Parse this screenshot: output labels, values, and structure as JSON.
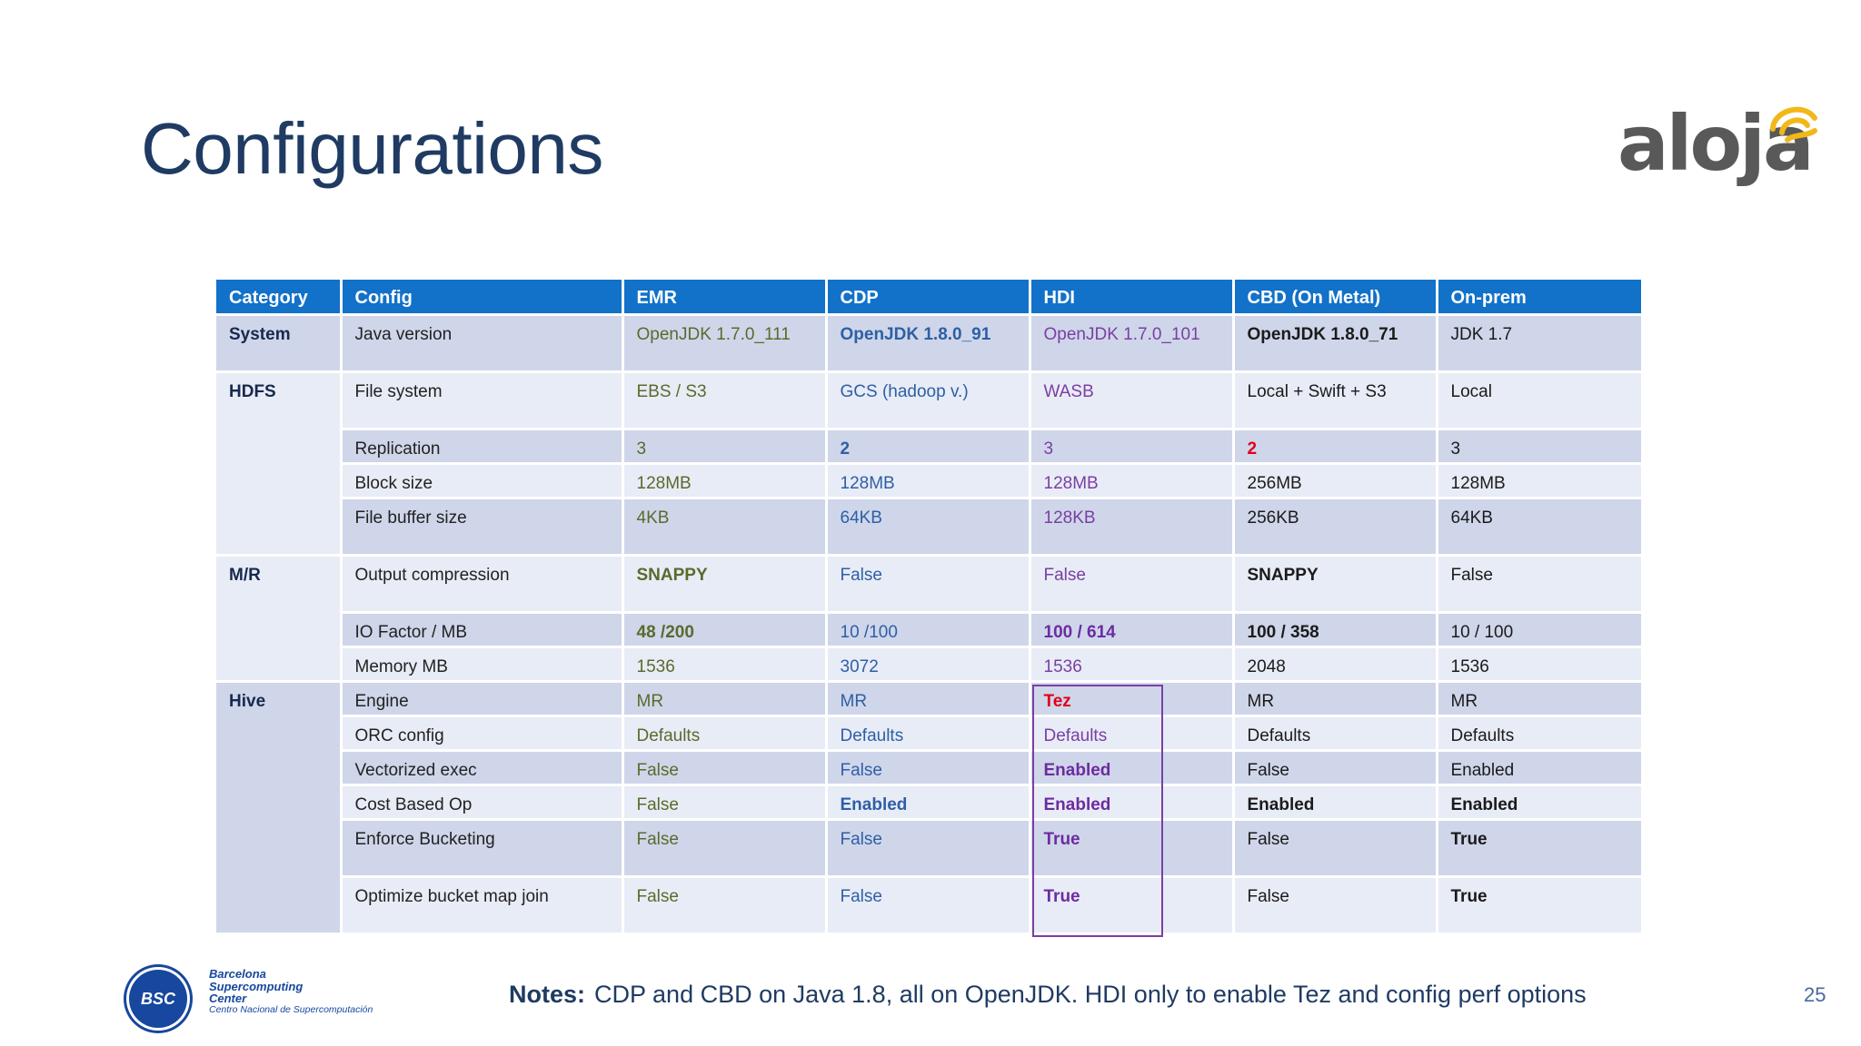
{
  "title": "Configurations",
  "logo": {
    "text": "aloja"
  },
  "table": {
    "headers": [
      "Category",
      "Config",
      "EMR",
      "CDP",
      "HDI",
      "CBD (On Metal)",
      "On-prem"
    ],
    "categories": {
      "system": "System",
      "hdfs": "HDFS",
      "mr": "M/R",
      "hive": "Hive"
    },
    "rows": [
      {
        "config": "Java version",
        "emr": "OpenJDK 1.7.0_111",
        "cdp": "OpenJDK 1.8.0_91",
        "hdi": "OpenJDK 1.7.0_101",
        "cbd": "OpenJDK 1.8.0_71",
        "onprem": "JDK 1.7"
      },
      {
        "config": "File system",
        "emr": "EBS / S3",
        "cdp": "GCS (hadoop v.)",
        "hdi": "WASB",
        "cbd": "Local + Swift + S3",
        "onprem": "Local"
      },
      {
        "config": "Replication",
        "emr": "3",
        "cdp": "2",
        "hdi": "3",
        "cbd": "2",
        "onprem": "3"
      },
      {
        "config": "Block size",
        "emr": "128MB",
        "cdp": "128MB",
        "hdi": "128MB",
        "cbd": "256MB",
        "onprem": "128MB"
      },
      {
        "config": "File buffer size",
        "emr": "4KB",
        "cdp": "64KB",
        "hdi": "128KB",
        "cbd": "256KB",
        "onprem": "64KB"
      },
      {
        "config": "Output compression",
        "emr": "SNAPPY",
        "cdp": "False",
        "hdi": "False",
        "cbd": "SNAPPY",
        "onprem": "False"
      },
      {
        "config": "IO Factor / MB",
        "emr": "48 /200",
        "cdp": "10 /100",
        "hdi": "100 / 614",
        "cbd": "100 / 358",
        "onprem": "10 / 100"
      },
      {
        "config": "Memory MB",
        "emr": "1536",
        "cdp": "3072",
        "hdi": "1536",
        "cbd": "2048",
        "onprem": "1536"
      },
      {
        "config": "Engine",
        "emr": "MR",
        "cdp": "MR",
        "hdi": "Tez",
        "cbd": "MR",
        "onprem": "MR"
      },
      {
        "config": "ORC config",
        "emr": "Defaults",
        "cdp": "Defaults",
        "hdi": "Defaults",
        "cbd": "Defaults",
        "onprem": "Defaults"
      },
      {
        "config": "Vectorized exec",
        "emr": "False",
        "cdp": "False",
        "hdi": "Enabled",
        "cbd": "False",
        "onprem": "Enabled"
      },
      {
        "config": "Cost Based Op",
        "emr": "False",
        "cdp": "Enabled",
        "hdi": "Enabled",
        "cbd": "Enabled",
        "onprem": "Enabled"
      },
      {
        "config": "Enforce Bucketing",
        "emr": "False",
        "cdp": "False",
        "hdi": "True",
        "cbd": "False",
        "onprem": "True"
      },
      {
        "config": "Optimize bucket map join",
        "emr": "False",
        "cdp": "False",
        "hdi": "True",
        "cbd": "False",
        "onprem": "True"
      }
    ]
  },
  "footer": {
    "bsc_logo": {
      "abbr": "BSC",
      "lines": [
        "Barcelona",
        "Supercomputing",
        "Center"
      ],
      "subtitle": "Centro Nacional de Supercomputación"
    },
    "notes_label": "Notes:",
    "notes_text": "CDP and CBD on Java 1.8, all on OpenJDK. HDI only to enable Tez and config perf options",
    "page_number": "25"
  },
  "colors": {
    "title": "#1f3b63",
    "header_bg": "#1271c8",
    "row_dark": "#cfd6ea",
    "row_light": "#e8ecf6",
    "emr": "#5b6a2c",
    "cdp": "#2e5fa5",
    "hdi": "#7a3fa3",
    "highlight_red": "#e0001b",
    "logo_gray": "#595959",
    "logo_yellow": "#f2b81a",
    "bsc_blue": "#17479e"
  }
}
